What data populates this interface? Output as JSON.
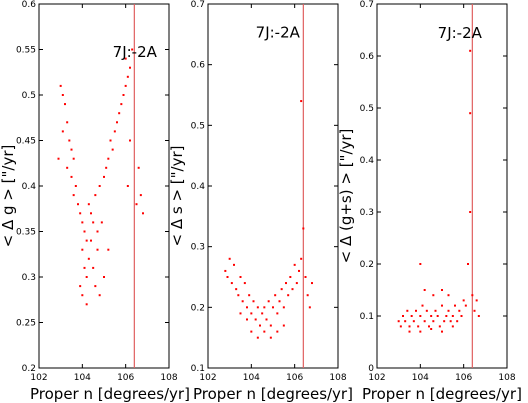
{
  "chart_data": [
    {
      "type": "scatter",
      "title": "",
      "xlabel": "Proper n [degrees/yr]",
      "ylabel": "< Δ g > [\"/yr]",
      "xlim": [
        102,
        108
      ],
      "ylim": [
        0.2,
        0.6
      ],
      "xticks": [
        "102",
        "104",
        "106",
        "108"
      ],
      "yticks": [
        "0.2",
        "0.25",
        "0.3",
        "0.35",
        "0.4",
        "0.45",
        "0.5",
        "0.55",
        "0.6"
      ],
      "resonance": {
        "x": 106.4,
        "label": "7J:-2A",
        "label_x": 105.4,
        "label_y": 0.542
      },
      "marker_color": "#ff0000",
      "line_color": "#e06060",
      "series": [
        {
          "values": [
            [
              102.9,
              0.43
            ],
            [
              103.0,
              0.51
            ],
            [
              103.1,
              0.5
            ],
            [
              103.2,
              0.49
            ],
            [
              103.3,
              0.47
            ],
            [
              103.1,
              0.46
            ],
            [
              103.4,
              0.45
            ],
            [
              103.5,
              0.44
            ],
            [
              103.6,
              0.43
            ],
            [
              103.3,
              0.42
            ],
            [
              103.5,
              0.41
            ],
            [
              103.7,
              0.4
            ],
            [
              103.6,
              0.39
            ],
            [
              103.8,
              0.38
            ],
            [
              103.9,
              0.37
            ],
            [
              104.0,
              0.36
            ],
            [
              104.1,
              0.35
            ],
            [
              104.2,
              0.34
            ],
            [
              104.0,
              0.33
            ],
            [
              104.3,
              0.32
            ],
            [
              104.1,
              0.31
            ],
            [
              104.2,
              0.3
            ],
            [
              103.9,
              0.29
            ],
            [
              104.0,
              0.28
            ],
            [
              104.2,
              0.27
            ],
            [
              104.3,
              0.38
            ],
            [
              104.4,
              0.37
            ],
            [
              104.5,
              0.36
            ],
            [
              104.6,
              0.39
            ],
            [
              104.7,
              0.35
            ],
            [
              104.8,
              0.4
            ],
            [
              104.9,
              0.36
            ],
            [
              105.0,
              0.41
            ],
            [
              105.1,
              0.42
            ],
            [
              105.2,
              0.43
            ],
            [
              105.3,
              0.45
            ],
            [
              105.4,
              0.44
            ],
            [
              105.5,
              0.46
            ],
            [
              105.6,
              0.47
            ],
            [
              105.7,
              0.48
            ],
            [
              105.8,
              0.49
            ],
            [
              105.9,
              0.5
            ],
            [
              106.0,
              0.51
            ],
            [
              106.1,
              0.52
            ],
            [
              106.2,
              0.53
            ],
            [
              106.0,
              0.54
            ],
            [
              106.3,
              0.55
            ],
            [
              106.2,
              0.45
            ],
            [
              106.1,
              0.4
            ],
            [
              106.5,
              0.38
            ],
            [
              106.6,
              0.42
            ],
            [
              106.7,
              0.39
            ],
            [
              106.8,
              0.37
            ],
            [
              105.2,
              0.33
            ],
            [
              105.0,
              0.3
            ],
            [
              104.8,
              0.28
            ],
            [
              104.6,
              0.29
            ],
            [
              104.5,
              0.31
            ],
            [
              104.7,
              0.33
            ],
            [
              104.4,
              0.34
            ]
          ]
        }
      ]
    },
    {
      "type": "scatter",
      "title": "",
      "xlabel": "Proper n [degrees/yr]",
      "ylabel": "< Δ s > [\"/yr]",
      "xlim": [
        102,
        108
      ],
      "ylim": [
        0.1,
        0.7
      ],
      "xticks": [
        "102",
        "104",
        "106",
        "108"
      ],
      "yticks": [
        "0.1",
        "0.2",
        "0.3",
        "0.4",
        "0.5",
        "0.6",
        "0.7"
      ],
      "resonance": {
        "x": 106.4,
        "label": "7J:-2A",
        "label_x": 104.2,
        "label_y": 0.645
      },
      "marker_color": "#ff0000",
      "line_color": "#e06060",
      "series": [
        {
          "values": [
            [
              102.8,
              0.26
            ],
            [
              102.9,
              0.25
            ],
            [
              103.0,
              0.28
            ],
            [
              103.1,
              0.24
            ],
            [
              103.2,
              0.27
            ],
            [
              103.3,
              0.23
            ],
            [
              103.4,
              0.22
            ],
            [
              103.5,
              0.25
            ],
            [
              103.6,
              0.21
            ],
            [
              103.7,
              0.24
            ],
            [
              103.8,
              0.2
            ],
            [
              103.9,
              0.22
            ],
            [
              104.0,
              0.19
            ],
            [
              104.1,
              0.21
            ],
            [
              104.2,
              0.18
            ],
            [
              104.3,
              0.2
            ],
            [
              104.4,
              0.17
            ],
            [
              104.5,
              0.19
            ],
            [
              104.6,
              0.2
            ],
            [
              104.7,
              0.18
            ],
            [
              104.8,
              0.21
            ],
            [
              104.9,
              0.17
            ],
            [
              105.0,
              0.2
            ],
            [
              105.1,
              0.22
            ],
            [
              105.2,
              0.19
            ],
            [
              105.3,
              0.21
            ],
            [
              105.4,
              0.23
            ],
            [
              105.5,
              0.2
            ],
            [
              105.6,
              0.24
            ],
            [
              105.7,
              0.22
            ],
            [
              105.8,
              0.25
            ],
            [
              105.9,
              0.23
            ],
            [
              106.0,
              0.27
            ],
            [
              106.1,
              0.24
            ],
            [
              106.2,
              0.26
            ],
            [
              106.3,
              0.28
            ],
            [
              106.4,
              0.33
            ],
            [
              106.3,
              0.54
            ],
            [
              106.5,
              0.25
            ],
            [
              106.6,
              0.22
            ],
            [
              106.7,
              0.2
            ],
            [
              106.8,
              0.24
            ],
            [
              104.0,
              0.16
            ],
            [
              104.3,
              0.15
            ],
            [
              104.6,
              0.16
            ],
            [
              104.9,
              0.15
            ],
            [
              105.2,
              0.16
            ],
            [
              105.5,
              0.17
            ],
            [
              103.5,
              0.19
            ],
            [
              103.8,
              0.18
            ]
          ]
        }
      ]
    },
    {
      "type": "scatter",
      "title": "",
      "xlabel": "Proper n [degrees/yr]",
      "ylabel": "< Δ (g+s) > [\"/yr]",
      "xlim": [
        102,
        108
      ],
      "ylim": [
        0,
        0.7
      ],
      "xticks": [
        "102",
        "104",
        "106",
        "108"
      ],
      "yticks": [
        "0",
        "0.1",
        "0.2",
        "0.3",
        "0.4",
        "0.5",
        "0.6",
        "0.7"
      ],
      "resonance": {
        "x": 106.4,
        "label": "7J:-2A",
        "label_x": 104.8,
        "label_y": 0.635
      },
      "marker_color": "#ff0000",
      "line_color": "#e06060",
      "series": [
        {
          "values": [
            [
              103.0,
              0.09
            ],
            [
              103.1,
              0.08
            ],
            [
              103.2,
              0.1
            ],
            [
              103.3,
              0.09
            ],
            [
              103.4,
              0.11
            ],
            [
              103.5,
              0.08
            ],
            [
              103.6,
              0.1
            ],
            [
              103.7,
              0.09
            ],
            [
              103.8,
              0.11
            ],
            [
              103.9,
              0.08
            ],
            [
              104.0,
              0.1
            ],
            [
              104.1,
              0.12
            ],
            [
              104.2,
              0.09
            ],
            [
              104.3,
              0.11
            ],
            [
              104.4,
              0.08
            ],
            [
              104.5,
              0.1
            ],
            [
              104.6,
              0.09
            ],
            [
              104.7,
              0.11
            ],
            [
              104.8,
              0.1
            ],
            [
              104.9,
              0.08
            ],
            [
              105.0,
              0.12
            ],
            [
              105.1,
              0.09
            ],
            [
              105.2,
              0.1
            ],
            [
              105.3,
              0.11
            ],
            [
              105.4,
              0.09
            ],
            [
              105.5,
              0.1
            ],
            [
              105.6,
              0.12
            ],
            [
              105.7,
              0.09
            ],
            [
              105.8,
              0.11
            ],
            [
              105.9,
              0.1
            ],
            [
              106.0,
              0.13
            ],
            [
              106.1,
              0.12
            ],
            [
              106.2,
              0.2
            ],
            [
              106.3,
              0.3
            ],
            [
              106.3,
              0.49
            ],
            [
              106.3,
              0.61
            ],
            [
              106.4,
              0.14
            ],
            [
              106.5,
              0.11
            ],
            [
              106.6,
              0.13
            ],
            [
              106.7,
              0.1
            ],
            [
              104.0,
              0.2
            ],
            [
              104.2,
              0.15
            ],
            [
              104.6,
              0.14
            ],
            [
              105.0,
              0.15
            ],
            [
              105.3,
              0.14
            ],
            [
              103.5,
              0.07
            ],
            [
              104.0,
              0.07
            ],
            [
              104.5,
              0.075
            ],
            [
              105.0,
              0.07
            ],
            [
              105.5,
              0.08
            ]
          ]
        }
      ]
    }
  ]
}
